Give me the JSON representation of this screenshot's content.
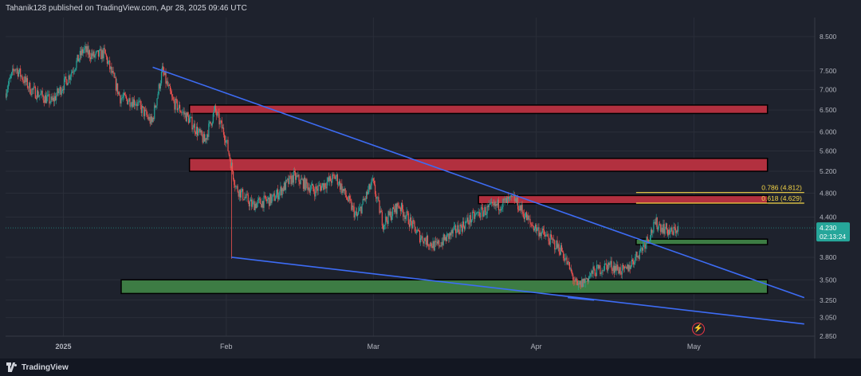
{
  "header": {
    "text": "Tahanik128 published on TradingView.com, Apr 28, 2025 09:46 UTC"
  },
  "footer": {
    "brand": "TradingView"
  },
  "colors": {
    "background": "#1e222d",
    "up": "#26a69a",
    "down": "#ef5350",
    "trendline": "#3d6cf5",
    "resistance_zone": "#b2303f",
    "support_zone": "#3d7c44",
    "fib": "#f5d547",
    "price_badge": "#26a69a"
  },
  "chart_data": {
    "type": "candlestick",
    "y_scale": "log",
    "ylim": [
      2.85,
      8.9
    ],
    "x_range": [
      "2024-12-21",
      "2025-05-24"
    ],
    "x_ticks": [
      {
        "date": "2025-01-01",
        "label": "2025"
      },
      {
        "date": "2025-02-01",
        "label": "Feb"
      },
      {
        "date": "2025-03-01",
        "label": "Mar"
      },
      {
        "date": "2025-04-01",
        "label": "Apr"
      },
      {
        "date": "2025-05-01",
        "label": "May"
      }
    ],
    "y_ticks": [
      "8.500",
      "7.500",
      "7.000",
      "6.500",
      "6.000",
      "5.600",
      "5.200",
      "4.800",
      "4.400",
      "3.800",
      "3.500",
      "3.250",
      "3.050",
      "2.850"
    ],
    "price_path": [
      {
        "date": "2024-12-21",
        "price": 6.9
      },
      {
        "date": "2024-12-23",
        "price": 7.6
      },
      {
        "date": "2024-12-26",
        "price": 7.0
      },
      {
        "date": "2024-12-30",
        "price": 6.7
      },
      {
        "date": "2025-01-02",
        "price": 7.3
      },
      {
        "date": "2025-01-05",
        "price": 8.1
      },
      {
        "date": "2025-01-07",
        "price": 7.9
      },
      {
        "date": "2025-01-09",
        "price": 8.0
      },
      {
        "date": "2025-01-12",
        "price": 6.8
      },
      {
        "date": "2025-01-15",
        "price": 6.7
      },
      {
        "date": "2025-01-18",
        "price": 6.2
      },
      {
        "date": "2025-01-20",
        "price": 7.5
      },
      {
        "date": "2025-01-22",
        "price": 6.7
      },
      {
        "date": "2025-01-25",
        "price": 6.3
      },
      {
        "date": "2025-01-28",
        "price": 5.8
      },
      {
        "date": "2025-01-30",
        "price": 6.5
      },
      {
        "date": "2025-02-01",
        "price": 5.9
      },
      {
        "date": "2025-02-03",
        "price": 4.9
      },
      {
        "date": "2025-02-06",
        "price": 4.6
      },
      {
        "date": "2025-02-10",
        "price": 4.7
      },
      {
        "date": "2025-02-14",
        "price": 5.1
      },
      {
        "date": "2025-02-18",
        "price": 4.85
      },
      {
        "date": "2025-02-22",
        "price": 5.1
      },
      {
        "date": "2025-02-26",
        "price": 4.4
      },
      {
        "date": "2025-03-01",
        "price": 5.0
      },
      {
        "date": "2025-03-03",
        "price": 4.3
      },
      {
        "date": "2025-03-06",
        "price": 4.6
      },
      {
        "date": "2025-03-10",
        "price": 4.1
      },
      {
        "date": "2025-03-13",
        "price": 3.95
      },
      {
        "date": "2025-03-17",
        "price": 4.2
      },
      {
        "date": "2025-03-21",
        "price": 4.45
      },
      {
        "date": "2025-03-25",
        "price": 4.6
      },
      {
        "date": "2025-03-28",
        "price": 4.7
      },
      {
        "date": "2025-03-31",
        "price": 4.3
      },
      {
        "date": "2025-04-03",
        "price": 4.1
      },
      {
        "date": "2025-04-06",
        "price": 3.9
      },
      {
        "date": "2025-04-09",
        "price": 3.4
      },
      {
        "date": "2025-04-12",
        "price": 3.6
      },
      {
        "date": "2025-04-15",
        "price": 3.7
      },
      {
        "date": "2025-04-18",
        "price": 3.6
      },
      {
        "date": "2025-04-21",
        "price": 3.9
      },
      {
        "date": "2025-04-24",
        "price": 4.3
      },
      {
        "date": "2025-04-27",
        "price": 4.15
      },
      {
        "date": "2025-04-28",
        "price": 4.23
      }
    ],
    "trendlines": [
      {
        "name": "descending resistance",
        "from": {
          "date": "2025-01-18",
          "price": 7.6
        },
        "to": {
          "date": "2025-05-22",
          "price": 3.28
        }
      },
      {
        "name": "descending support",
        "from": {
          "date": "2025-02-02",
          "price": 3.8
        },
        "to": {
          "date": "2025-05-22",
          "price": 2.98
        }
      },
      {
        "name": "lower wedge line",
        "from": {
          "date": "2025-04-07",
          "price": 3.28
        },
        "to": {
          "date": "2025-04-12",
          "price": 3.25
        }
      }
    ],
    "zones": [
      {
        "name": "resistance 1",
        "type": "resistance",
        "from": "2025-01-25",
        "to": "2025-05-15",
        "top": 6.62,
        "bottom": 6.42
      },
      {
        "name": "resistance 2",
        "type": "resistance",
        "from": "2025-01-25",
        "to": "2025-05-15",
        "top": 5.45,
        "bottom": 5.2
      },
      {
        "name": "resistance 3",
        "type": "resistance",
        "from": "2025-03-21",
        "to": "2025-05-15",
        "top": 4.76,
        "bottom": 4.62
      },
      {
        "name": "support 1",
        "type": "support",
        "from": "2025-04-20",
        "to": "2025-05-15",
        "top": 4.06,
        "bottom": 3.98
      },
      {
        "name": "support 2",
        "type": "support",
        "from": "2025-01-12",
        "to": "2025-05-15",
        "top": 3.5,
        "bottom": 3.33
      }
    ],
    "fib_levels": [
      {
        "label": "0.786 (4.812)",
        "price": 4.812,
        "from": "2025-04-20",
        "to": "2025-05-22"
      },
      {
        "label": "0.618 (4.629)",
        "price": 4.629,
        "from": "2025-04-20",
        "to": "2025-05-22"
      }
    ],
    "current_price": {
      "value": "4.230",
      "countdown": "02:13:24"
    }
  }
}
